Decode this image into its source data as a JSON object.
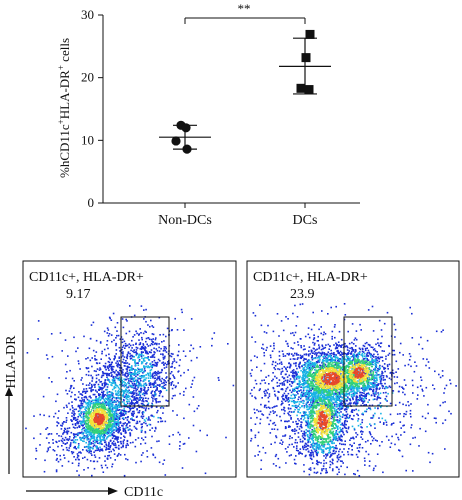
{
  "chart_data": [
    {
      "type": "scatter",
      "ylabel": "%hCD11c⁺HLA-DR⁺ cells",
      "ylabel_parts": {
        "prefix": "%hCD11c",
        "sup1": "+",
        "middle": "HLA-DR",
        "sup2": "+",
        "suffix": " cells"
      },
      "ylim": [
        0,
        30
      ],
      "yticks": [
        "0",
        "10",
        "20",
        "30"
      ],
      "categories": [
        "Non-DCs",
        "DCs"
      ],
      "grid": false,
      "series": [
        {
          "category": "Non-DCs",
          "marker": "circle",
          "values": [
            12.4,
            12.0,
            9.9,
            8.6
          ],
          "mean": 10.5,
          "sd_low": 8.6,
          "sd_high": 12.4
        },
        {
          "category": "DCs",
          "marker": "square",
          "values": [
            26.9,
            23.2,
            18.3,
            18.1
          ],
          "mean": 21.8,
          "sd_low": 17.4,
          "sd_high": 26.3
        }
      ],
      "significance": {
        "label": "**",
        "between": [
          "Non-DCs",
          "DCs"
        ]
      }
    },
    {
      "type": "scatter",
      "subtype": "flow-cytometry-density",
      "xlabel": "CD11c",
      "ylabel": "HLA-DR",
      "panels": [
        {
          "gate_label": "CD11c+, HLA-DR+",
          "percent": "9.17"
        },
        {
          "gate_label": "CD11c+, HLA-DR+",
          "percent": "23.9"
        }
      ],
      "density_colors": [
        "#1a2fd6",
        "#19b4e6",
        "#33d17a",
        "#f2e23a",
        "#e8492a"
      ]
    }
  ]
}
